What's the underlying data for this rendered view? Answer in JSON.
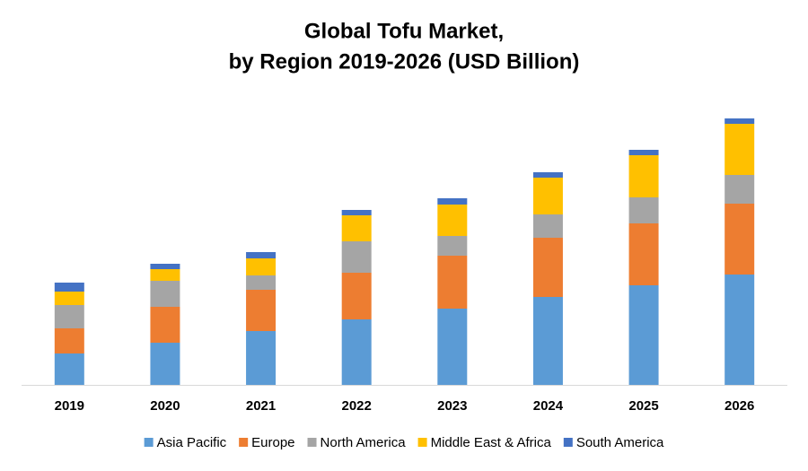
{
  "chart_data": {
    "type": "stacked_bar",
    "title": [
      "Global Tofu Market,",
      "by Region 2019-2026 (USD Billion)"
    ],
    "categories": [
      "2019",
      "2020",
      "2021",
      "2022",
      "2023",
      "2024",
      "2025",
      "2026"
    ],
    "series": [
      {
        "name": "Asia Pacific",
        "color": "#5b9bd5",
        "values": [
          35,
          47,
          60,
          73,
          85,
          98,
          111,
          123
        ]
      },
      {
        "name": "Europe",
        "color": "#ed7d31",
        "values": [
          28,
          40,
          46,
          52,
          59,
          66,
          69,
          79
        ]
      },
      {
        "name": "North America",
        "color": "#a5a5a5",
        "values": [
          26,
          29,
          16,
          35,
          22,
          26,
          29,
          32
        ]
      },
      {
        "name": "Middle East & Africa",
        "color": "#ffc000",
        "values": [
          15,
          13,
          19,
          29,
          35,
          41,
          47,
          57
        ]
      },
      {
        "name": "South America",
        "color": "#4472c4",
        "values": [
          10,
          6,
          7,
          6,
          7,
          6,
          6,
          6
        ]
      }
    ],
    "ylim": [
      0,
      300
    ],
    "legend": "bottom"
  }
}
